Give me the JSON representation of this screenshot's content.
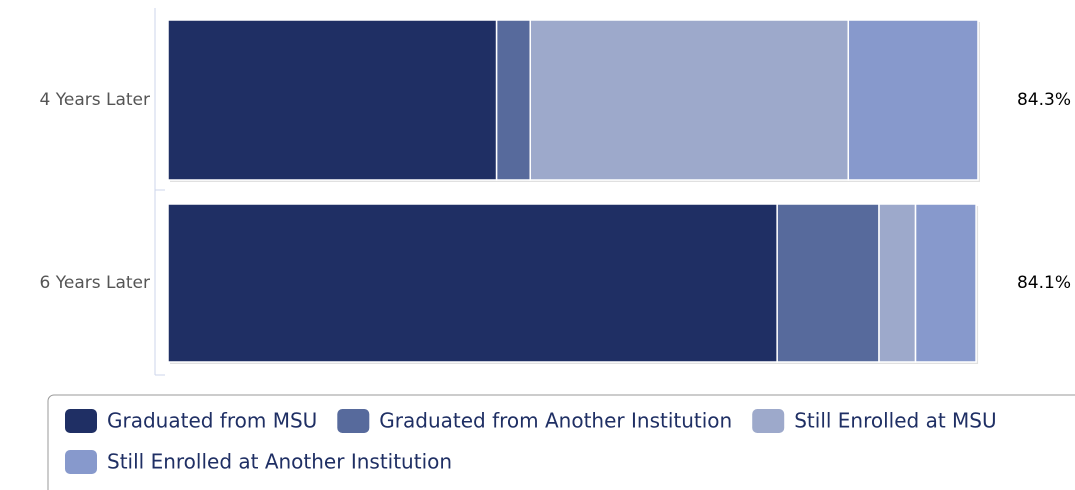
{
  "chart_data": {
    "type": "stacked-bar",
    "categories": [
      "4 Years Later",
      "6 Years Later"
    ],
    "series": [
      {
        "name": "Graduated from MSU",
        "color": "#1f2f64",
        "values": [
          34.2,
          63.4
        ]
      },
      {
        "name": "Graduated from Another Institution",
        "color": "#576a9c",
        "values": [
          3.5,
          10.6
        ]
      },
      {
        "name": "Still Enrolled at MSU",
        "color": "#9da9cb",
        "values": [
          33.1,
          3.8
        ]
      },
      {
        "name": "Still Enrolled at Another Institution",
        "color": "#8799cc",
        "values": [
          13.5,
          6.3
        ]
      }
    ],
    "totals": {
      "values": [
        84.3,
        84.1
      ],
      "value_labels": [
        "84.3%",
        "84.1%"
      ]
    },
    "xlim": [
      0,
      84.3
    ]
  }
}
